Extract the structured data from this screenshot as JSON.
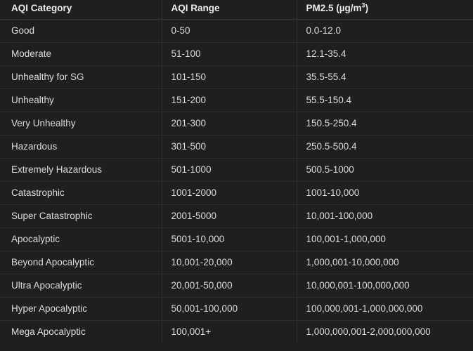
{
  "table": {
    "headers": {
      "category": "AQI Category",
      "range": "AQI Range",
      "pm_prefix": "PM2.5 (µg/m",
      "pm_sup": "3",
      "pm_suffix": ")"
    },
    "rows": [
      {
        "category": "Good",
        "range": "0-50",
        "pm": "0.0-12.0"
      },
      {
        "category": "Moderate",
        "range": "51-100",
        "pm": "12.1-35.4"
      },
      {
        "category": "Unhealthy for SG",
        "range": "101-150",
        "pm": "35.5-55.4"
      },
      {
        "category": "Unhealthy",
        "range": "151-200",
        "pm": "55.5-150.4"
      },
      {
        "category": "Very Unhealthy",
        "range": "201-300",
        "pm": "150.5-250.4"
      },
      {
        "category": "Hazardous",
        "range": "301-500",
        "pm": "250.5-500.4"
      },
      {
        "category": "Extremely Hazardous",
        "range": "501-1000",
        "pm": "500.5-1000"
      },
      {
        "category": "Catastrophic",
        "range": "1001-2000",
        "pm": "1001-10,000"
      },
      {
        "category": "Super Catastrophic",
        "range": "2001-5000",
        "pm": "10,001-100,000"
      },
      {
        "category": "Apocalyptic",
        "range": "5001-10,000",
        "pm": "100,001-1,000,000"
      },
      {
        "category": "Beyond Apocalyptic",
        "range": "10,001-20,000",
        "pm": "1,000,001-10,000,000"
      },
      {
        "category": "Ultra Apocalyptic",
        "range": "20,001-50,000",
        "pm": "10,000,001-100,000,000"
      },
      {
        "category": "Hyper Apocalyptic",
        "range": "50,001-100,000",
        "pm": "100,000,001-1,000,000,000"
      },
      {
        "category": "Mega Apocalyptic",
        "range": "100,001+",
        "pm": "1,000,000,001-2,000,000,000"
      }
    ]
  }
}
